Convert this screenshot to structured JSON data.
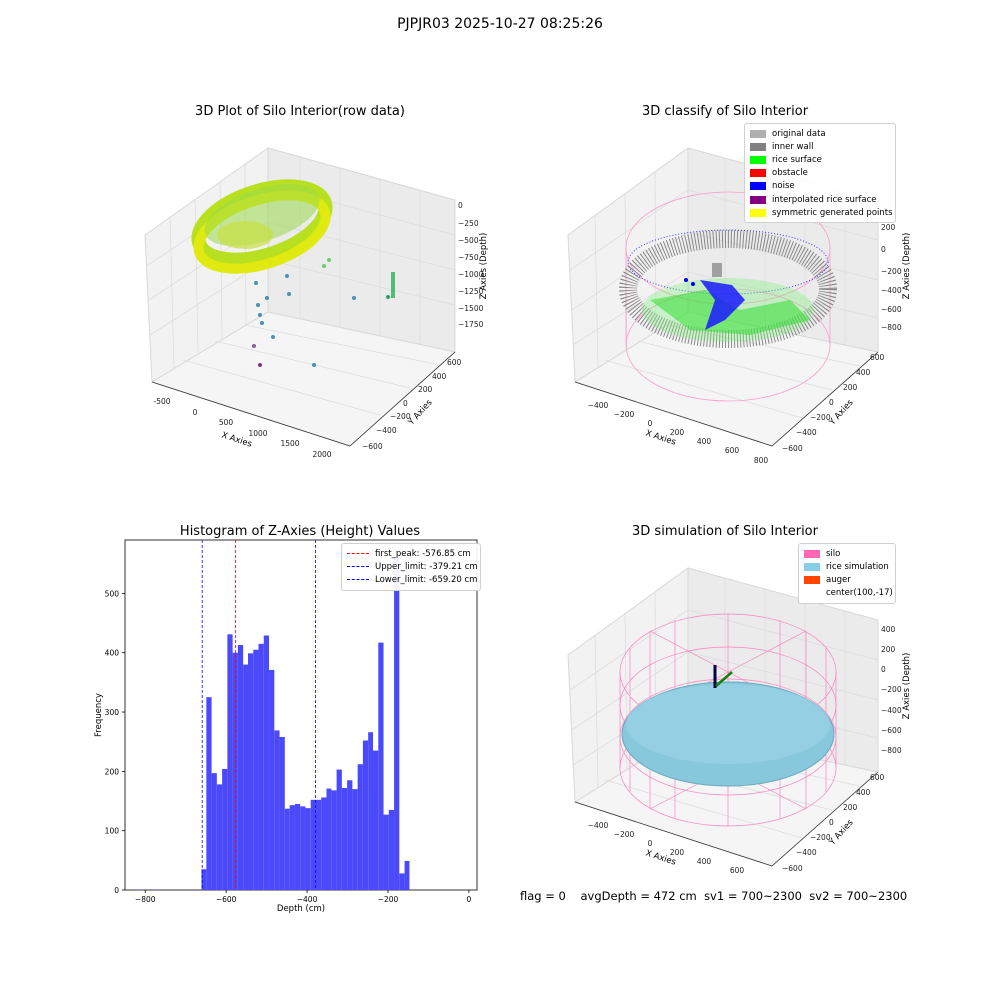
{
  "figure": {
    "suptitle": "PJPJR03 2025-10-27 08:25:26",
    "status": {
      "flag": "flag = 0",
      "avg_depth": "avgDepth = 472 cm",
      "sv1": "sv1 = 700~2300",
      "sv2": "sv2 = 700~2300"
    }
  },
  "panels": {
    "p1": {
      "title": "3D Plot of Silo Interior(row data)",
      "xlabel": "X Axies",
      "ylabel": "Y Axies",
      "zlabel": "Z Axies (Depth)",
      "xticks": [
        "-500",
        "0",
        "500",
        "1000",
        "1500",
        "2000"
      ],
      "yticks": [
        "600",
        "400",
        "200",
        "0",
        "−200",
        "−400",
        "−600"
      ],
      "zticks": [
        "0",
        "−250",
        "−500",
        "−750",
        "−1000",
        "−1250",
        "−1500",
        "−1750"
      ]
    },
    "p2": {
      "title": "3D classify of Silo Interior",
      "xlabel": "X Axies",
      "ylabel": "Y Axies",
      "zlabel": "Z Axies (Depth)",
      "xticks": [
        "−400",
        "−200",
        "0",
        "200",
        "400",
        "600",
        "800"
      ],
      "yticks": [
        "600",
        "400",
        "200",
        "0",
        "−200",
        "−400",
        "−600"
      ],
      "zticks": [
        "200",
        "0",
        "−200",
        "−400",
        "−600",
        "−800"
      ],
      "legend": [
        {
          "label": "original data",
          "color": "#b0b0b0"
        },
        {
          "label": "inner wall",
          "color": "#808080"
        },
        {
          "label": "rice surface",
          "color": "#00ff00"
        },
        {
          "label": "obstacle",
          "color": "#ff0000"
        },
        {
          "label": "noise",
          "color": "#0000ff"
        },
        {
          "label": "interpolated rice surface",
          "color": "#800080"
        },
        {
          "label": "symmetric generated points",
          "color": "#ffff00"
        }
      ]
    },
    "p4": {
      "title": "3D simulation of Silo Interior",
      "xlabel": "X Axies",
      "ylabel": "Y Axies",
      "zlabel": "Z Axies (Depth)",
      "xticks": [
        "−400",
        "−200",
        "0",
        "200",
        "400",
        "600"
      ],
      "yticks": [
        "600",
        "400",
        "200",
        "0",
        "−200",
        "−400",
        "−600"
      ],
      "zticks": [
        "400",
        "200",
        "0",
        "−200",
        "−400",
        "−600",
        "−800"
      ],
      "legend": [
        {
          "label": "silo",
          "color": "#ff69b4"
        },
        {
          "label": "rice simulation",
          "color": "#87ceeb"
        },
        {
          "label": "auger",
          "color": "#ff4500"
        },
        {
          "label": "center(100,-17)",
          "color": "#ffffff"
        }
      ]
    }
  },
  "chart_data": {
    "type": "bar",
    "title": "Histogram of Z-Axies (Height) Values",
    "xlabel": "Depth (cm)",
    "ylabel": "Frequency",
    "xlim": [
      -850,
      20
    ],
    "ylim": [
      0,
      590
    ],
    "xticks": [
      -800,
      -600,
      -400,
      -200,
      0
    ],
    "xtick_labels": [
      "−800",
      "−600",
      "−400",
      "−200",
      "0"
    ],
    "yticks": [
      0,
      100,
      200,
      300,
      400,
      500
    ],
    "bar_color": "#4a4afb",
    "bins": [
      {
        "x0": -820,
        "x1": -807,
        "count": 1
      },
      {
        "x0": -780,
        "x1": -767,
        "count": 1
      },
      {
        "x0": -661,
        "x1": -649,
        "count": 35
      },
      {
        "x0": -649,
        "x1": -636,
        "count": 325
      },
      {
        "x0": -636,
        "x1": -623,
        "count": 197
      },
      {
        "x0": -623,
        "x1": -610,
        "count": 178
      },
      {
        "x0": -610,
        "x1": -597,
        "count": 204
      },
      {
        "x0": -597,
        "x1": -584,
        "count": 431
      },
      {
        "x0": -584,
        "x1": -571,
        "count": 400
      },
      {
        "x0": -571,
        "x1": -558,
        "count": 413
      },
      {
        "x0": -558,
        "x1": -546,
        "count": 380
      },
      {
        "x0": -546,
        "x1": -533,
        "count": 399
      },
      {
        "x0": -533,
        "x1": -520,
        "count": 405
      },
      {
        "x0": -520,
        "x1": -507,
        "count": 415
      },
      {
        "x0": -507,
        "x1": -494,
        "count": 429
      },
      {
        "x0": -494,
        "x1": -481,
        "count": 371
      },
      {
        "x0": -481,
        "x1": -468,
        "count": 269
      },
      {
        "x0": -468,
        "x1": -455,
        "count": 258
      },
      {
        "x0": -455,
        "x1": -443,
        "count": 137
      },
      {
        "x0": -443,
        "x1": -430,
        "count": 143
      },
      {
        "x0": -430,
        "x1": -417,
        "count": 145
      },
      {
        "x0": -417,
        "x1": -404,
        "count": 141
      },
      {
        "x0": -404,
        "x1": -391,
        "count": 138
      },
      {
        "x0": -391,
        "x1": -378,
        "count": 152
      },
      {
        "x0": -378,
        "x1": -365,
        "count": 152
      },
      {
        "x0": -365,
        "x1": -352,
        "count": 156
      },
      {
        "x0": -352,
        "x1": -340,
        "count": 171
      },
      {
        "x0": -340,
        "x1": -327,
        "count": 168
      },
      {
        "x0": -327,
        "x1": -314,
        "count": 203
      },
      {
        "x0": -314,
        "x1": -301,
        "count": 172
      },
      {
        "x0": -301,
        "x1": -288,
        "count": 185
      },
      {
        "x0": -288,
        "x1": -275,
        "count": 170
      },
      {
        "x0": -275,
        "x1": -262,
        "count": 212
      },
      {
        "x0": -262,
        "x1": -249,
        "count": 252
      },
      {
        "x0": -249,
        "x1": -237,
        "count": 266
      },
      {
        "x0": -237,
        "x1": -224,
        "count": 235
      },
      {
        "x0": -224,
        "x1": -211,
        "count": 417
      },
      {
        "x0": -211,
        "x1": -198,
        "count": 127
      },
      {
        "x0": -198,
        "x1": -185,
        "count": 135
      },
      {
        "x0": -185,
        "x1": -172,
        "count": 559
      },
      {
        "x0": -172,
        "x1": -159,
        "count": 28
      },
      {
        "x0": -159,
        "x1": -147,
        "count": 49
      }
    ],
    "vlines": [
      {
        "x": -576.85,
        "color": "#ff0000",
        "label": "first_peak: -576.85 cm"
      },
      {
        "x": -379.21,
        "color": "#0000ff",
        "label": "Upper_limit: -379.21 cm"
      },
      {
        "x": -659.2,
        "color": "#0000ff",
        "label": "Lower_limit: -659.20 cm"
      }
    ]
  }
}
